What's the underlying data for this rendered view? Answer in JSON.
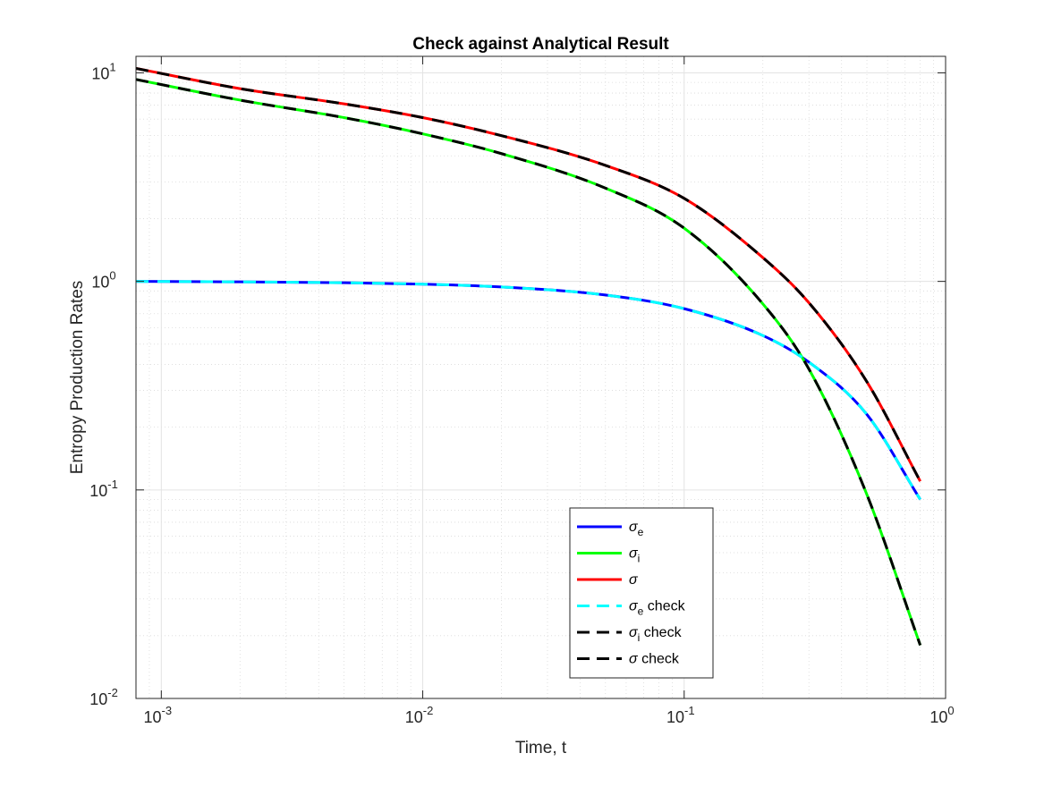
{
  "chart_data": {
    "type": "line",
    "title": "Check against Analytical Result",
    "xlabel": "Time, t",
    "ylabel": "Entropy Production Rates",
    "xscale": "log",
    "yscale": "log",
    "xlim": [
      0.0008,
      1
    ],
    "ylim": [
      0.01,
      12
    ],
    "grid": true,
    "minor_grid": true,
    "legend_position": "lower center",
    "xticks": [
      {
        "base": "10",
        "exp": "-3"
      },
      {
        "base": "10",
        "exp": "-2"
      },
      {
        "base": "10",
        "exp": "-1"
      },
      {
        "base": "10",
        "exp": "0"
      }
    ],
    "yticks": [
      {
        "base": "10",
        "exp": "-2"
      },
      {
        "base": "10",
        "exp": "-1"
      },
      {
        "base": "10",
        "exp": "0"
      },
      {
        "base": "10",
        "exp": "1"
      }
    ],
    "series": [
      {
        "name": "σe",
        "sym": "σ",
        "sub": "e",
        "suffix": "",
        "color": "#0000ff",
        "style": "solid",
        "x": [
          0.0008,
          0.002,
          0.005,
          0.01,
          0.02,
          0.05,
          0.1,
          0.2,
          0.3,
          0.5,
          0.8
        ],
        "y": [
          1.0,
          0.995,
          0.985,
          0.97,
          0.94,
          0.86,
          0.74,
          0.55,
          0.41,
          0.23,
          0.09
        ]
      },
      {
        "name": "σi",
        "sym": "σ",
        "sub": "i",
        "suffix": "",
        "color": "#00ff00",
        "style": "solid",
        "x": [
          0.0008,
          0.002,
          0.005,
          0.01,
          0.02,
          0.05,
          0.1,
          0.2,
          0.3,
          0.5,
          0.8
        ],
        "y": [
          9.3,
          7.4,
          6.1,
          5.1,
          4.1,
          2.8,
          1.8,
          0.78,
          0.38,
          0.095,
          0.018
        ]
      },
      {
        "name": "σ",
        "sym": "σ",
        "sub": "",
        "suffix": "",
        "color": "#ff0000",
        "style": "solid",
        "x": [
          0.0008,
          0.002,
          0.005,
          0.01,
          0.02,
          0.05,
          0.1,
          0.2,
          0.3,
          0.5,
          0.8
        ],
        "y": [
          10.5,
          8.4,
          7.1,
          6.1,
          5.0,
          3.6,
          2.5,
          1.3,
          0.79,
          0.33,
          0.11
        ]
      },
      {
        "name": "σe check",
        "sym": "σ",
        "sub": "e",
        "suffix": " check",
        "color": "#00ffff",
        "style": "dashed",
        "x": [
          0.0008,
          0.002,
          0.005,
          0.01,
          0.02,
          0.05,
          0.1,
          0.2,
          0.3,
          0.5,
          0.8
        ],
        "y": [
          1.0,
          0.995,
          0.985,
          0.97,
          0.94,
          0.86,
          0.74,
          0.55,
          0.41,
          0.23,
          0.09
        ]
      },
      {
        "name": "σi check",
        "sym": "σ",
        "sub": "i",
        "suffix": " check",
        "color": "#000000",
        "style": "dashed",
        "x": [
          0.0008,
          0.002,
          0.005,
          0.01,
          0.02,
          0.05,
          0.1,
          0.2,
          0.3,
          0.5,
          0.8
        ],
        "y": [
          9.3,
          7.4,
          6.1,
          5.1,
          4.1,
          2.8,
          1.8,
          0.78,
          0.38,
          0.095,
          0.018
        ]
      },
      {
        "name": "σ check",
        "sym": "σ",
        "sub": "",
        "suffix": " check",
        "color": "#000000",
        "style": "dashed",
        "x": [
          0.0008,
          0.002,
          0.005,
          0.01,
          0.02,
          0.05,
          0.1,
          0.2,
          0.3,
          0.5,
          0.8
        ],
        "y": [
          10.5,
          8.4,
          7.1,
          6.1,
          5.0,
          3.6,
          2.5,
          1.3,
          0.79,
          0.33,
          0.11
        ]
      }
    ]
  }
}
